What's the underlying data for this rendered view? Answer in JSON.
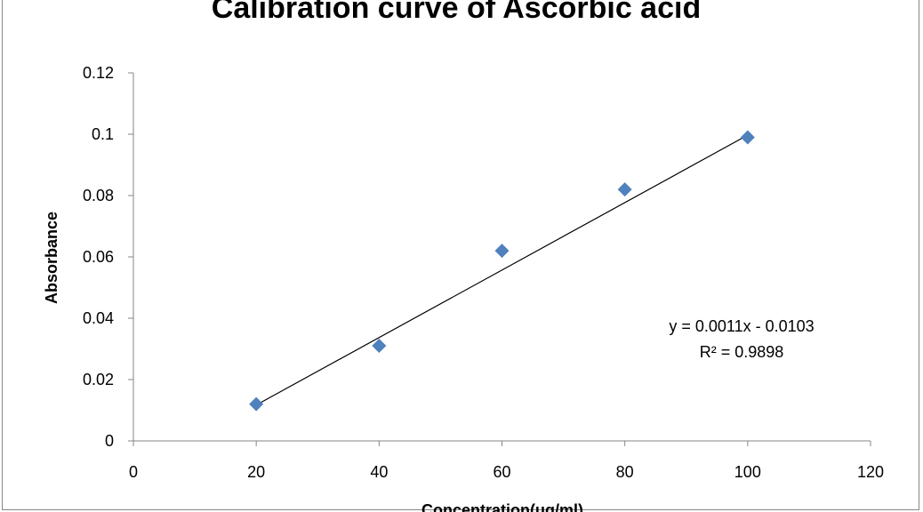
{
  "chart_data": {
    "type": "scatter",
    "title": "Calibration curve of Ascorbic acid",
    "xlabel": "Concentration(ug/ml)",
    "ylabel": "Absorbance",
    "xlim": [
      0,
      120
    ],
    "ylim": [
      0,
      0.12
    ],
    "x_ticks": [
      "0",
      "20",
      "40",
      "60",
      "80",
      "100",
      "120"
    ],
    "y_ticks": [
      "0",
      "0.02",
      "0.04",
      "0.06",
      "0.08",
      "0.1",
      "0.12"
    ],
    "series": [
      {
        "x": [
          20,
          40,
          60,
          80,
          100
        ],
        "y": [
          0.012,
          0.031,
          0.062,
          0.082,
          0.099
        ],
        "color": "#4F81BD",
        "marker": "diamond"
      }
    ],
    "trendline": {
      "type": "linear",
      "slope": 0.0011,
      "intercept": -0.0103,
      "x_range": [
        20,
        100
      ],
      "color": "#000000",
      "equation": "y = 0.0011x - 0.0103",
      "r_squared": "R² = 0.9898"
    },
    "grid": false,
    "legend": "none"
  }
}
